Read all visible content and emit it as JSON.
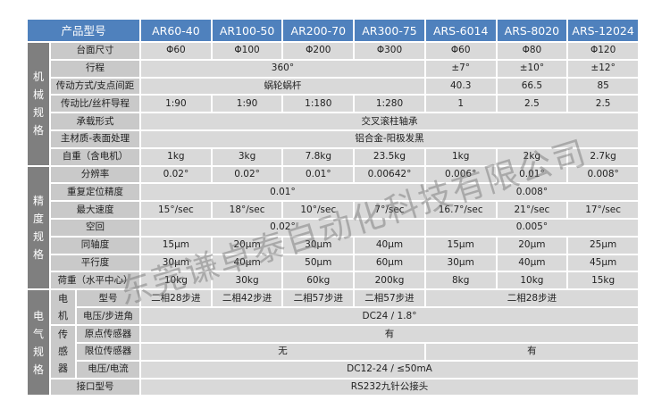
{
  "header": {
    "title": "产品型号",
    "models": [
      "AR60-40",
      "AR100-50",
      "AR200-70",
      "AR300-75",
      "ARS-6014",
      "ARS-8020",
      "ARS-12024"
    ]
  },
  "mechanical": {
    "section": "机械规格",
    "rows": [
      {
        "label": "台面尺寸",
        "values": [
          "Φ60",
          "Φ100",
          "Φ200",
          "Φ300",
          "Φ60",
          "Φ80",
          "Φ120"
        ]
      },
      {
        "label": "行程",
        "values": [
          "360°",
          "±7°",
          "±10°",
          "±12°"
        ]
      },
      {
        "label": "传动方式/支点间距",
        "values": [
          "蜗轮蜗杆",
          "40.3",
          "66.5",
          "85"
        ]
      },
      {
        "label": "传动比/丝杆导程",
        "values": [
          "1:90",
          "1:90",
          "1:180",
          "1:280",
          "1",
          "2.5",
          "2.5"
        ]
      },
      {
        "label": "承载形式",
        "values": [
          "交叉滚柱轴承"
        ]
      },
      {
        "label": "主材质-表面处理",
        "values": [
          "铝合金-阳极发黑"
        ]
      },
      {
        "label": "自重（含电机）",
        "values": [
          "1kg",
          "3kg",
          "7.8kg",
          "23.5kg",
          "1kg",
          "2kg",
          "2.7kg"
        ]
      }
    ]
  },
  "precision": {
    "section": "精度规格",
    "rows": [
      {
        "label": "分辨率",
        "values": [
          "0.02°",
          "0.02°",
          "0.01°",
          "0.00642°",
          "0.006°",
          "0.01°",
          "0.008°"
        ]
      },
      {
        "label": "重复定位精度",
        "values": [
          "0.01°",
          "0.008°"
        ]
      },
      {
        "label": "最大速度",
        "values": [
          "15°/sec",
          "18°/sec",
          "10°/sec",
          "7°/sec",
          "16.7°/sec",
          "21°/sec",
          "17°/sec"
        ]
      },
      {
        "label": "空回",
        "values": [
          "0.02°",
          "0.005°"
        ]
      },
      {
        "label": "同轴度",
        "values": [
          "15μm",
          "20μm",
          "30μm",
          "40μm",
          "15μm",
          "20μm",
          "25μm"
        ]
      },
      {
        "label": "平行度",
        "values": [
          "30μm",
          "40μm",
          "50μm",
          "60μm",
          "30μm",
          "40μm",
          "45μm"
        ]
      },
      {
        "label": "荷重（水平中心）",
        "values": [
          "10kg",
          "30kg",
          "60kg",
          "200kg",
          "8kg",
          "10kg",
          "15kg"
        ]
      }
    ]
  },
  "electrical": {
    "section": "电气规格",
    "motor": {
      "group": "电机",
      "rows": [
        {
          "label": "型号",
          "values": [
            "二相28步进",
            "二相42步进",
            "二相57步进",
            "二相57步进",
            "二相28步进"
          ]
        },
        {
          "label": "电压/步进角",
          "values": [
            "DC24 / 1.8°"
          ]
        }
      ]
    },
    "sensor": {
      "group": "传感器",
      "rows": [
        {
          "label": "原点传感器",
          "values": [
            "有"
          ]
        },
        {
          "label": "限位传感器",
          "values": [
            "无",
            "有"
          ]
        },
        {
          "label": "电压/电流",
          "values": [
            "DC12-24 / ≤50mA"
          ]
        }
      ]
    },
    "interface": {
      "label": "接口型号",
      "values": [
        "RS232九针公接头"
      ]
    }
  },
  "watermark": "东莞谦卓泰自动化科技有限公司"
}
